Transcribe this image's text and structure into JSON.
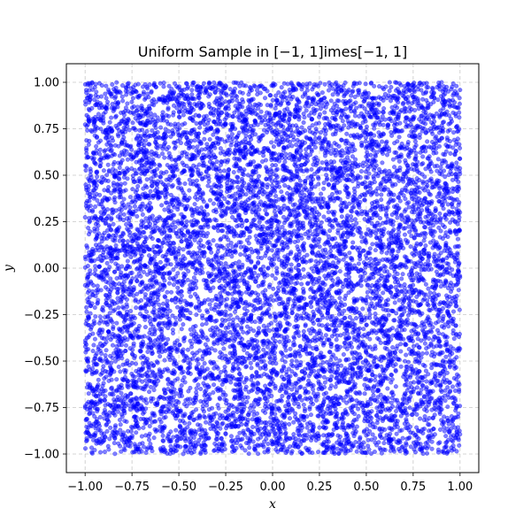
{
  "chart_data": {
    "type": "scatter",
    "title": "Uniform Sample in [−1, 1]imes[−1, 1]",
    "xlabel": "x",
    "ylabel": "y",
    "xlim": [
      -1.1,
      1.1
    ],
    "ylim": [
      -1.1,
      1.1
    ],
    "xticks": [
      "−1.00",
      "−0.75",
      "−0.50",
      "−0.25",
      "0.00",
      "0.25",
      "0.50",
      "0.75",
      "1.00"
    ],
    "yticks": [
      "−1.00",
      "−0.75",
      "−0.50",
      "−0.25",
      "0.00",
      "0.25",
      "0.50",
      "0.75",
      "1.00"
    ],
    "xtick_values": [
      -1,
      -0.75,
      -0.5,
      -0.25,
      0,
      0.25,
      0.5,
      0.75,
      1
    ],
    "ytick_values": [
      -1,
      -0.75,
      -0.5,
      -0.25,
      0,
      0.25,
      0.5,
      0.75,
      1
    ],
    "grid": true,
    "point_color": "#0000ff",
    "point_alpha": 0.5,
    "sample_count": 10000,
    "distribution": "uniform",
    "x_range": [
      -1,
      1
    ],
    "y_range": [
      -1,
      1
    ]
  }
}
